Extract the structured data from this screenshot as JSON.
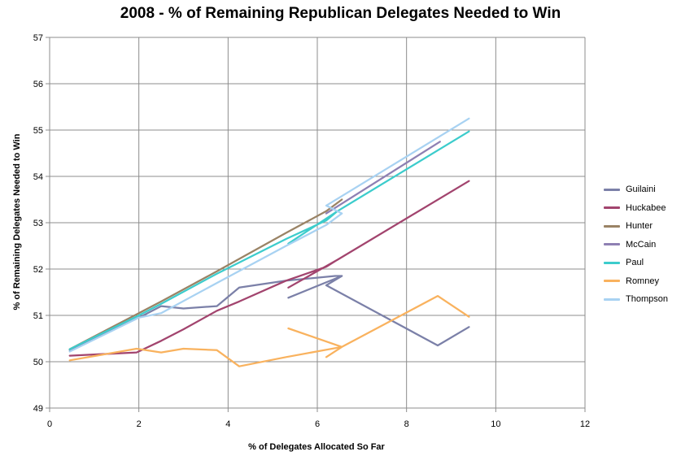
{
  "chart_data": {
    "type": "line",
    "title": "2008 - % of Remaining Republican Delegates Needed to Win",
    "xlabel": "% of Delegates Allocated So Far",
    "ylabel": "% of Remaining Delegates Needed to Win",
    "xlim": [
      0,
      12
    ],
    "ylim": [
      49,
      57
    ],
    "xticks": [
      "0",
      "2",
      "4",
      "6",
      "8",
      "10",
      "12"
    ],
    "yticks": [
      "49",
      "50",
      "51",
      "52",
      "53",
      "54",
      "55",
      "56",
      "57"
    ],
    "grid": true,
    "legend_position": "right",
    "series": [
      {
        "name": "Guilaini",
        "color": "#7b80a8",
        "points": [
          [
            0.45,
            50.25
          ],
          [
            2.1,
            51.0
          ],
          [
            2.5,
            51.2
          ],
          [
            3.0,
            51.15
          ],
          [
            3.75,
            51.2
          ],
          [
            4.25,
            51.6
          ],
          [
            5.3,
            51.75
          ],
          [
            6.4,
            51.85
          ],
          [
            6.55,
            51.85
          ],
          [
            5.35,
            51.38
          ],
          [
            6.55,
            51.85
          ],
          [
            6.2,
            51.65
          ],
          [
            8.7,
            50.35
          ],
          [
            9.4,
            50.75
          ]
        ]
      },
      {
        "name": "Huckabee",
        "color": "#a2446e",
        "points": [
          [
            0.45,
            50.13
          ],
          [
            1.95,
            50.2
          ],
          [
            2.5,
            50.45
          ],
          [
            3.0,
            50.7
          ],
          [
            3.75,
            51.1
          ],
          [
            4.25,
            51.3
          ],
          [
            5.3,
            51.75
          ],
          [
            6.2,
            52.05
          ],
          [
            6.45,
            52.2
          ],
          [
            5.35,
            51.6
          ],
          [
            6.45,
            52.2
          ],
          [
            9.4,
            53.9
          ]
        ]
      },
      {
        "name": "Hunter",
        "color": "#9a8365",
        "points": [
          [
            0.45,
            50.27
          ],
          [
            2.0,
            51.05
          ],
          [
            2.5,
            51.3
          ],
          [
            3.75,
            51.95
          ],
          [
            5.3,
            52.78
          ],
          [
            6.2,
            53.25
          ],
          [
            6.55,
            53.5
          ]
        ]
      },
      {
        "name": "McCain",
        "color": "#8e80b3",
        "points": [
          [
            6.2,
            53.2
          ],
          [
            8.75,
            54.75
          ]
        ]
      },
      {
        "name": "Paul",
        "color": "#3ccccc",
        "points": [
          [
            0.45,
            50.27
          ],
          [
            2.0,
            51.0
          ],
          [
            2.5,
            51.25
          ],
          [
            3.75,
            51.9
          ],
          [
            5.3,
            52.65
          ],
          [
            6.2,
            53.05
          ],
          [
            6.45,
            53.25
          ],
          [
            5.35,
            52.55
          ],
          [
            6.45,
            53.25
          ],
          [
            9.4,
            54.97
          ]
        ]
      },
      {
        "name": "Romney",
        "color": "#f9b25e",
        "points": [
          [
            0.45,
            50.03
          ],
          [
            1.95,
            50.28
          ],
          [
            2.5,
            50.2
          ],
          [
            3.0,
            50.28
          ],
          [
            3.75,
            50.25
          ],
          [
            4.25,
            49.9
          ],
          [
            5.3,
            50.1
          ],
          [
            6.55,
            50.32
          ],
          [
            6.2,
            50.1
          ],
          [
            6.55,
            50.32
          ],
          [
            5.35,
            50.72
          ],
          [
            6.55,
            50.32
          ],
          [
            8.7,
            51.42
          ],
          [
            9.4,
            50.97
          ]
        ]
      },
      {
        "name": "Thompson",
        "color": "#a8d2f2",
        "points": [
          [
            0.45,
            50.22
          ],
          [
            2.0,
            50.95
          ],
          [
            2.5,
            51.05
          ],
          [
            3.75,
            51.7
          ],
          [
            5.3,
            52.5
          ],
          [
            6.2,
            52.95
          ],
          [
            6.55,
            53.2
          ],
          [
            6.2,
            53.37
          ],
          [
            6.45,
            53.25
          ],
          [
            6.2,
            53.37
          ],
          [
            9.4,
            55.25
          ]
        ]
      }
    ]
  }
}
